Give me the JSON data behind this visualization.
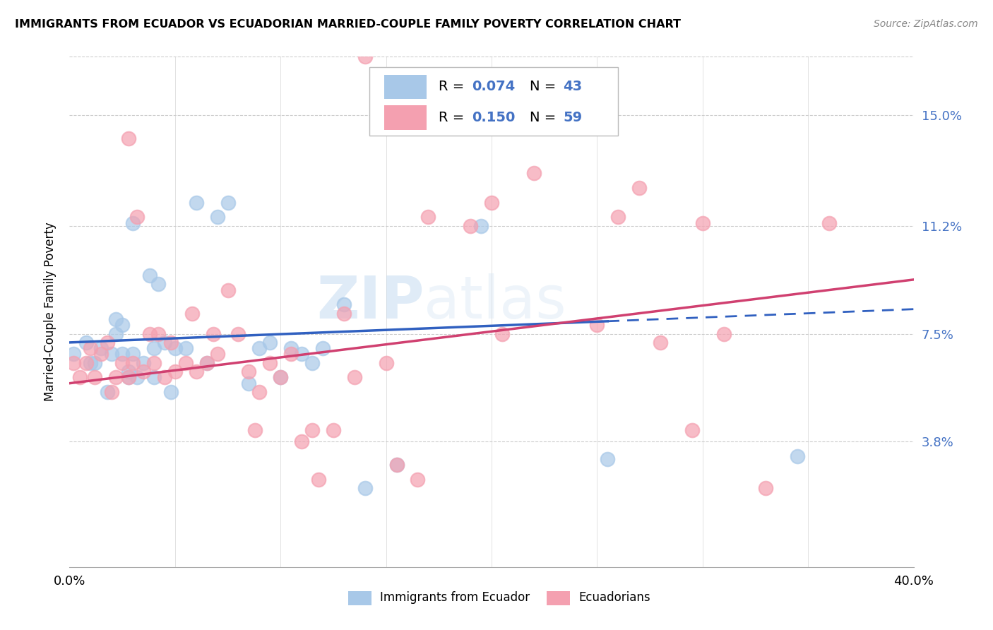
{
  "title": "IMMIGRANTS FROM ECUADOR VS ECUADORIAN MARRIED-COUPLE FAMILY POVERTY CORRELATION CHART",
  "source": "Source: ZipAtlas.com",
  "ylabel": "Married-Couple Family Poverty",
  "yticks": [
    "15.0%",
    "11.2%",
    "7.5%",
    "3.8%"
  ],
  "ytick_vals": [
    0.15,
    0.112,
    0.075,
    0.038
  ],
  "xlim": [
    0.0,
    0.4
  ],
  "ylim": [
    -0.005,
    0.17
  ],
  "blue_color": "#a8c8e8",
  "pink_color": "#f4a0b0",
  "trend_blue_color": "#3060c0",
  "trend_pink_color": "#d04070",
  "watermark": "ZIPAtlas",
  "blue_x": [
    0.002,
    0.008,
    0.01,
    0.012,
    0.015,
    0.018,
    0.02,
    0.022,
    0.022,
    0.025,
    0.025,
    0.028,
    0.028,
    0.03,
    0.03,
    0.032,
    0.035,
    0.038,
    0.04,
    0.04,
    0.042,
    0.045,
    0.048,
    0.05,
    0.055,
    0.06,
    0.065,
    0.07,
    0.075,
    0.085,
    0.09,
    0.095,
    0.1,
    0.105,
    0.11,
    0.115,
    0.12,
    0.13,
    0.14,
    0.155,
    0.195,
    0.255,
    0.345
  ],
  "blue_y": [
    0.068,
    0.072,
    0.065,
    0.065,
    0.07,
    0.055,
    0.068,
    0.075,
    0.08,
    0.068,
    0.078,
    0.06,
    0.062,
    0.068,
    0.113,
    0.06,
    0.065,
    0.095,
    0.06,
    0.07,
    0.092,
    0.072,
    0.055,
    0.07,
    0.07,
    0.12,
    0.065,
    0.115,
    0.12,
    0.058,
    0.07,
    0.072,
    0.06,
    0.07,
    0.068,
    0.065,
    0.07,
    0.085,
    0.022,
    0.03,
    0.112,
    0.032,
    0.033
  ],
  "pink_x": [
    0.002,
    0.005,
    0.008,
    0.01,
    0.012,
    0.015,
    0.018,
    0.02,
    0.022,
    0.025,
    0.028,
    0.028,
    0.03,
    0.032,
    0.035,
    0.038,
    0.04,
    0.042,
    0.045,
    0.048,
    0.05,
    0.055,
    0.058,
    0.06,
    0.065,
    0.068,
    0.07,
    0.075,
    0.08,
    0.085,
    0.088,
    0.09,
    0.095,
    0.1,
    0.105,
    0.11,
    0.115,
    0.118,
    0.125,
    0.13,
    0.135,
    0.14,
    0.15,
    0.155,
    0.165,
    0.17,
    0.19,
    0.2,
    0.205,
    0.22,
    0.25,
    0.26,
    0.27,
    0.28,
    0.295,
    0.3,
    0.31,
    0.33,
    0.36
  ],
  "pink_y": [
    0.065,
    0.06,
    0.065,
    0.07,
    0.06,
    0.068,
    0.072,
    0.055,
    0.06,
    0.065,
    0.06,
    0.142,
    0.065,
    0.115,
    0.062,
    0.075,
    0.065,
    0.075,
    0.06,
    0.072,
    0.062,
    0.065,
    0.082,
    0.062,
    0.065,
    0.075,
    0.068,
    0.09,
    0.075,
    0.062,
    0.042,
    0.055,
    0.065,
    0.06,
    0.068,
    0.038,
    0.042,
    0.025,
    0.042,
    0.082,
    0.06,
    0.17,
    0.065,
    0.03,
    0.025,
    0.115,
    0.112,
    0.12,
    0.075,
    0.13,
    0.078,
    0.115,
    0.125,
    0.072,
    0.042,
    0.113,
    0.075,
    0.022,
    0.113
  ],
  "blue_trend_x0": 0.0,
  "blue_trend_y0": 0.072,
  "blue_trend_x1": 0.35,
  "blue_trend_y1": 0.082,
  "pink_trend_x0": 0.0,
  "pink_trend_y0": 0.058,
  "pink_trend_x1": 0.36,
  "pink_trend_y1": 0.09
}
